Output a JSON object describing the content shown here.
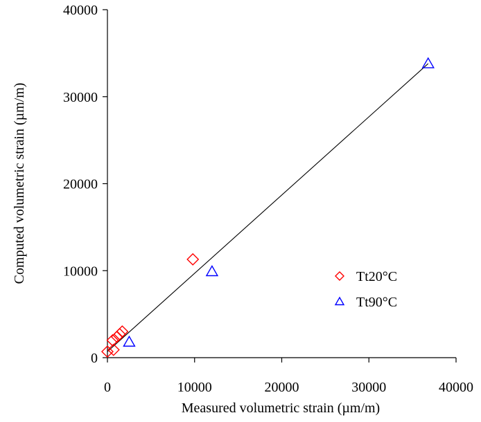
{
  "chart_data": {
    "type": "scatter",
    "title": "",
    "xlabel": "Measured volumetric strain (µm/m)",
    "ylabel": "Computed volumetric strain (µm/m)",
    "xlim": [
      0,
      40000
    ],
    "ylim": [
      0,
      40000
    ],
    "xticks": [
      0,
      10000,
      20000,
      30000,
      40000
    ],
    "yticks": [
      0,
      10000,
      20000,
      30000,
      40000
    ],
    "xtick_labels": [
      "0",
      "10000",
      "20000",
      "30000",
      "40000"
    ],
    "ytick_labels": [
      "0",
      "10000",
      "20000",
      "30000",
      "40000"
    ],
    "grid": false,
    "legend_position": "right-middle",
    "series": [
      {
        "name": "Tt20°C",
        "marker": "diamond",
        "color": "#ff0000",
        "points": [
          {
            "x": 0,
            "y": 700
          },
          {
            "x": 700,
            "y": 900
          },
          {
            "x": 600,
            "y": 2000
          },
          {
            "x": 1100,
            "y": 2400
          },
          {
            "x": 1400,
            "y": 2700
          },
          {
            "x": 1700,
            "y": 3000
          },
          {
            "x": 9800,
            "y": 11300
          }
        ]
      },
      {
        "name": "Tt90°C",
        "marker": "triangle",
        "color": "#0000ff",
        "points": [
          {
            "x": 2500,
            "y": 1800
          },
          {
            "x": 12000,
            "y": 9900
          },
          {
            "x": 36800,
            "y": 33800
          }
        ]
      }
    ],
    "fit_line": {
      "color": "#000000",
      "from": {
        "x": 0,
        "y": 700
      },
      "to": {
        "x": 36800,
        "y": 33800
      }
    }
  }
}
